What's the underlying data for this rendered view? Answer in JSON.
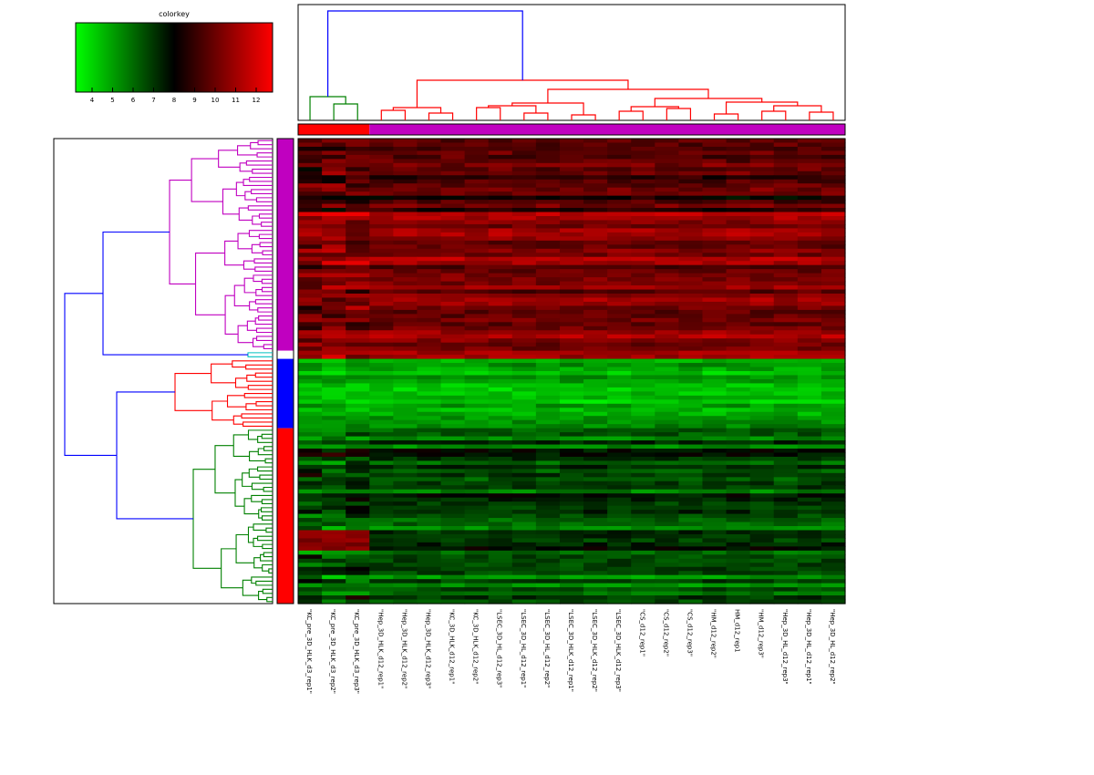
{
  "chart_data": {
    "type": "heatmap",
    "title": "",
    "colorkey": {
      "title": "colorkey",
      "ticks": [
        4,
        5,
        6,
        7,
        8,
        9,
        10,
        11,
        12
      ],
      "range": [
        3.2,
        12.8
      ],
      "colors": [
        "#00ff00",
        "#000000",
        "#ff0000"
      ]
    },
    "columns": [
      "\"KC_pre_3D_HLK_d3_rep1\"",
      "\"KC_pre_3D_HLK_d3_rep2\"",
      "\"KC_pre_3D_HLK_d3_rep3\"",
      "\"Hep_3D_HLK_d12_rep1\"",
      "\"Hep_3D_HLK_d12_rep2\"",
      "\"Hep_3D_HLK_d12_rep3\"",
      "\"KC_3D_HLK_d12_rep1\"",
      "\"KC_3D_HLK_d12_rep2\"",
      "\"LSEC_3D_HL_d12_rep3\"",
      "\"LSEC_3D_HL_d12_rep1\"",
      "\"LSEC_3D_HL_d12_rep2\"",
      "\"LSEC_3D_HLK_d12_rep1\"",
      "\"LSEC_3D_HLK_d12_rep2\"",
      "\"LSEC_3D_HLK_d12_rep3\"",
      "\"CS_d12_rep1\"",
      "\"CS_d12_rep2\"",
      "\"CS_d12_rep3\"",
      "\"HM_d12_rep2\"",
      "HM_d12_rep1",
      "\"HM_d12_rep3\"",
      "\"Hep_3D_HL_d12_rep3\"",
      "\"Hep_3D_HL_d12_rep1\"",
      "\"Hep_3D_HL_d12_rep2\""
    ],
    "column_groups": [
      {
        "span": 3,
        "color": "#ff0000"
      },
      {
        "span": 20,
        "color": "#c000c0"
      }
    ],
    "row_clusters": [
      {
        "rows": 52,
        "color": "#c000c0",
        "level": "high",
        "value_range": [
          9.5,
          11.5
        ]
      },
      {
        "rows": 2,
        "color": "#ffffff",
        "level": "transition",
        "value_range": [
          9.5,
          12.0
        ]
      },
      {
        "rows": 17,
        "color": "#0000ff",
        "level": "low",
        "value_range": [
          4.0,
          5.5
        ]
      },
      {
        "rows": 43,
        "color": "#ff0000",
        "level": "mid-low",
        "value_range": [
          5.0,
          7.8
        ]
      }
    ],
    "column_dendrogram_colors": [
      "#008000",
      "#ff0000",
      "#0000ff"
    ],
    "row_dendrogram_colors": [
      "#c000c0",
      "#00c0c0",
      "#ff0000",
      "#008000",
      "#0000ff"
    ]
  }
}
